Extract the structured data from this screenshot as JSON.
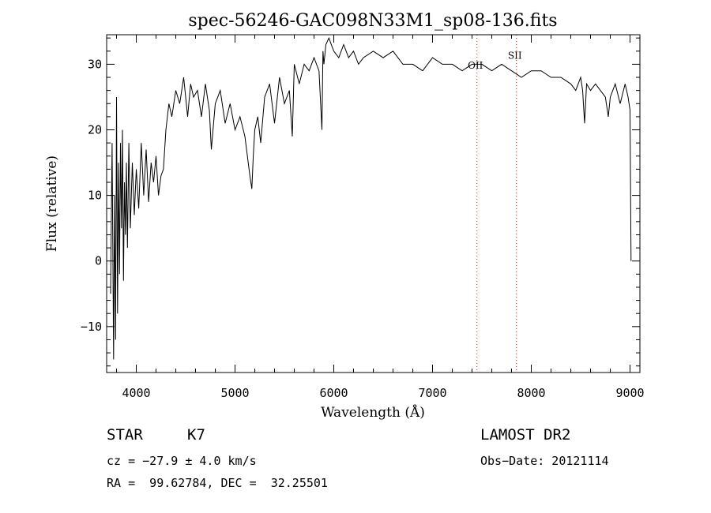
{
  "chart_data": {
    "type": "line",
    "title": "spec-56246-GAC098N33M1_sp08-136.fits",
    "xlabel": "Wavelength (Å)",
    "ylabel": "Flux (relative)",
    "xlim": [
      3700,
      9100
    ],
    "ylim": [
      -17,
      34.5
    ],
    "x_ticks": [
      4000,
      5000,
      6000,
      7000,
      8000,
      9000
    ],
    "y_ticks": [
      -10,
      0,
      10,
      20,
      30
    ],
    "grid": false,
    "line_color": "#000000",
    "series": [
      {
        "x": [
          3740,
          3755,
          3770,
          3780,
          3790,
          3800,
          3810,
          3820,
          3830,
          3840,
          3850,
          3860,
          3870,
          3880,
          3890,
          3900,
          3910,
          3925,
          3940,
          3960,
          3980,
          4000,
          4025,
          4050,
          4075,
          4100,
          4125,
          4150,
          4175,
          4200,
          4225,
          4250,
          4275,
          4300,
          4330,
          4360,
          4400,
          4440,
          4480,
          4520,
          4550,
          4580,
          4620,
          4660,
          4700,
          4740,
          4760,
          4800,
          4850,
          4900,
          4950,
          5000,
          5050,
          5100,
          5150,
          5170,
          5185,
          5200,
          5230,
          5260,
          5300,
          5350,
          5400,
          5450,
          5500,
          5550,
          5580,
          5600,
          5650,
          5700,
          5750,
          5800,
          5850,
          5880,
          5890,
          5900,
          5920,
          5950,
          6000,
          6050,
          6100,
          6150,
          6200,
          6250,
          6300,
          6400,
          6500,
          6600,
          6700,
          6800,
          6900,
          7000,
          7100,
          7200,
          7300,
          7400,
          7500,
          7600,
          7700,
          7800,
          7900,
          8000,
          8100,
          8200,
          8300,
          8400,
          8450,
          8500,
          8520,
          8540,
          8560,
          8600,
          8650,
          8700,
          8750,
          8780,
          8800,
          8850,
          8900,
          8950,
          8980,
          9000,
          9010
        ],
        "y": [
          -5,
          18,
          -15,
          10,
          -12,
          25,
          -8,
          15,
          -2,
          18,
          5,
          20,
          -3,
          12,
          4,
          15,
          2,
          18,
          5,
          15,
          7,
          14,
          8,
          18,
          10,
          17,
          9,
          15,
          12,
          16,
          10,
          13,
          14,
          20,
          24,
          22,
          26,
          24,
          28,
          22,
          27,
          25,
          26,
          22,
          27,
          23,
          17,
          24,
          26,
          21,
          24,
          20,
          22,
          19,
          13,
          11,
          16,
          20,
          22,
          18,
          25,
          27,
          21,
          28,
          24,
          26,
          19,
          30,
          27,
          30,
          29,
          31,
          29,
          20,
          32,
          30,
          33,
          34,
          32,
          31,
          33,
          31,
          32,
          30,
          31,
          32,
          31,
          32,
          30,
          30,
          29,
          31,
          30,
          30,
          29,
          30,
          30,
          29,
          30,
          29,
          28,
          29,
          29,
          28,
          28,
          27,
          26,
          28,
          26,
          21,
          27,
          26,
          27,
          26,
          25,
          22,
          25,
          27,
          24,
          27,
          25,
          23,
          0
        ]
      }
    ],
    "lines": [
      {
        "label": "OII",
        "x": 7450,
        "color": "#ff0000",
        "label_y": 29.3
      },
      {
        "label": "SII",
        "x": 7850,
        "color": "#ff0000",
        "label_y": 30.8
      }
    ]
  },
  "info": {
    "class_label": "STAR",
    "subclass_label": "K7",
    "survey": "LAMOST DR2",
    "cz_text": "cz = −27.9 ± 4.0 km/s",
    "obs_date": "Obs−Date: 20121114",
    "coords": "RA =  99.62784, DEC =  32.25501"
  }
}
